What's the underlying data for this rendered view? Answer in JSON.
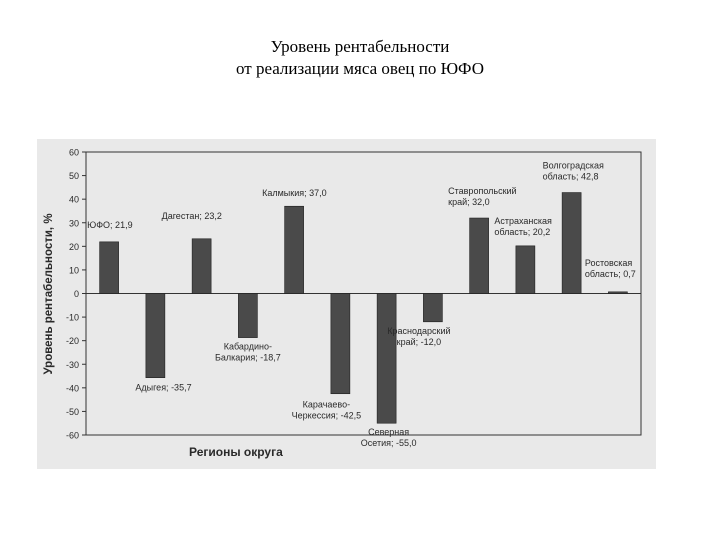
{
  "page": {
    "title_line1": "Уровень рентабельности",
    "title_line2": "от реализации мяса овец по ЮФО"
  },
  "colors": {
    "background": "#ffffff",
    "scan_background": "#e9e9e9",
    "bar_fill": "#4a4a4a",
    "axis": "#333333",
    "text": "#2a2a2a"
  },
  "chart_data": {
    "type": "bar",
    "title": "",
    "xlabel": "Регионы округа",
    "ylabel": "Уровень рентабельности, %",
    "ylim": [
      -60,
      60
    ],
    "yticks": [
      60,
      50,
      40,
      30,
      20,
      10,
      0,
      -10,
      -20,
      -30,
      -40,
      -50,
      -60
    ],
    "grid": false,
    "legend": "none",
    "categories": [
      "ЮФО",
      "Адыгея",
      "Дагестан",
      "Кабардино-Балкария",
      "Калмыкия",
      "Карачаево-Черкессия",
      "Северная Осетия",
      "Краснодарский край",
      "Ставропольский край",
      "Астраханская область",
      "Волгоградская область",
      "Ростовская область"
    ],
    "values": [
      21.9,
      -35.7,
      23.2,
      -18.7,
      37.0,
      -42.5,
      -55.0,
      -12.0,
      32.0,
      20.2,
      42.8,
      0.7
    ],
    "data_labels": [
      [
        "ЮФО; 21,9"
      ],
      [
        "Адыгея; -35,7"
      ],
      [
        "Дагестан; 23,2"
      ],
      [
        "Кабардино-",
        "Балкария; -18,7"
      ],
      [
        "Калмыкия; 37,0"
      ],
      [
        "Карачаево-",
        "Черкессия; -42,5"
      ],
      [
        "Северная",
        "Осетия; -55,0"
      ],
      [
        "Краснодарский",
        "край; -12,0"
      ],
      [
        "Ставропольский",
        "край; 32,0"
      ],
      [
        "Астраханская",
        "область; 20,2"
      ],
      [
        "Волгоградская",
        "область; 42,8"
      ],
      [
        "Ростовская",
        "область; 0,7"
      ]
    ]
  }
}
